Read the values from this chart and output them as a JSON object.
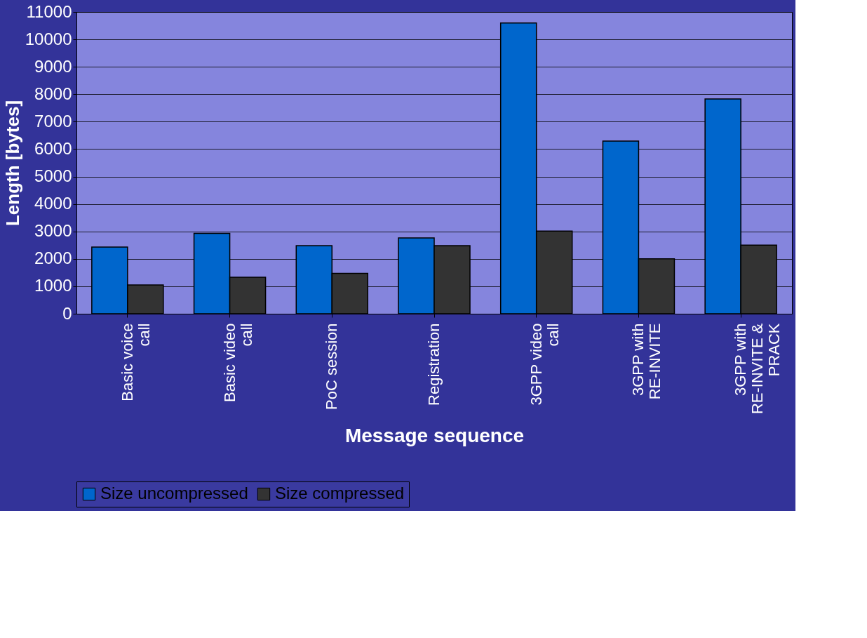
{
  "chart_data": {
    "type": "bar",
    "xlabel": "Message sequence",
    "ylabel": "Length [bytes]",
    "categories": [
      "Basic voice call",
      "Basic video call",
      "PoC session",
      "Registration",
      "3GPP video call",
      "3GPP with RE-INVITE",
      "3GPP with RE-INVITE & PRACK"
    ],
    "series": [
      {
        "name": "Size uncompressed",
        "color": "#0066cc",
        "values": [
          2430,
          2930,
          2480,
          2760,
          10600,
          6290,
          7830
        ]
      },
      {
        "name": "Size compressed",
        "color": "#333333",
        "values": [
          1050,
          1330,
          1470,
          2480,
          3010,
          2000,
          2500
        ]
      }
    ],
    "ylim": [
      0,
      11000
    ],
    "yticks": [
      0,
      1000,
      2000,
      3000,
      4000,
      5000,
      6000,
      7000,
      8000,
      9000,
      10000,
      11000
    ],
    "grid": "y",
    "legend": "bottom"
  }
}
